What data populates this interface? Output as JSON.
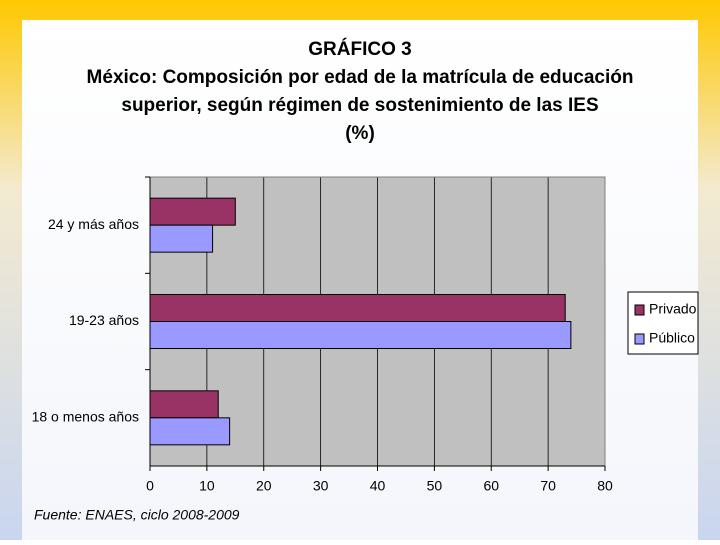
{
  "chart_data": {
    "type": "barh",
    "title": [
      "GRÁFICO 3",
      "México: Composición por edad de la matrícula de educación",
      "superior, según régimen de sostenimiento de las IES",
      "(%)"
    ],
    "categories": [
      "24 y más años",
      "19-23 años",
      "18 o menos años"
    ],
    "series": [
      {
        "name": "Privado",
        "color": "#993366",
        "values": [
          15,
          73,
          12
        ]
      },
      {
        "name": "Público",
        "color": "#9999ff",
        "values": [
          11,
          74,
          14
        ]
      }
    ],
    "xlim": [
      0,
      80
    ],
    "xticks": [
      0,
      10,
      20,
      30,
      40,
      50,
      60,
      70,
      80
    ],
    "grid": true,
    "legend": "right",
    "source": "Fuente: ENAES, ciclo 2008-2009"
  }
}
